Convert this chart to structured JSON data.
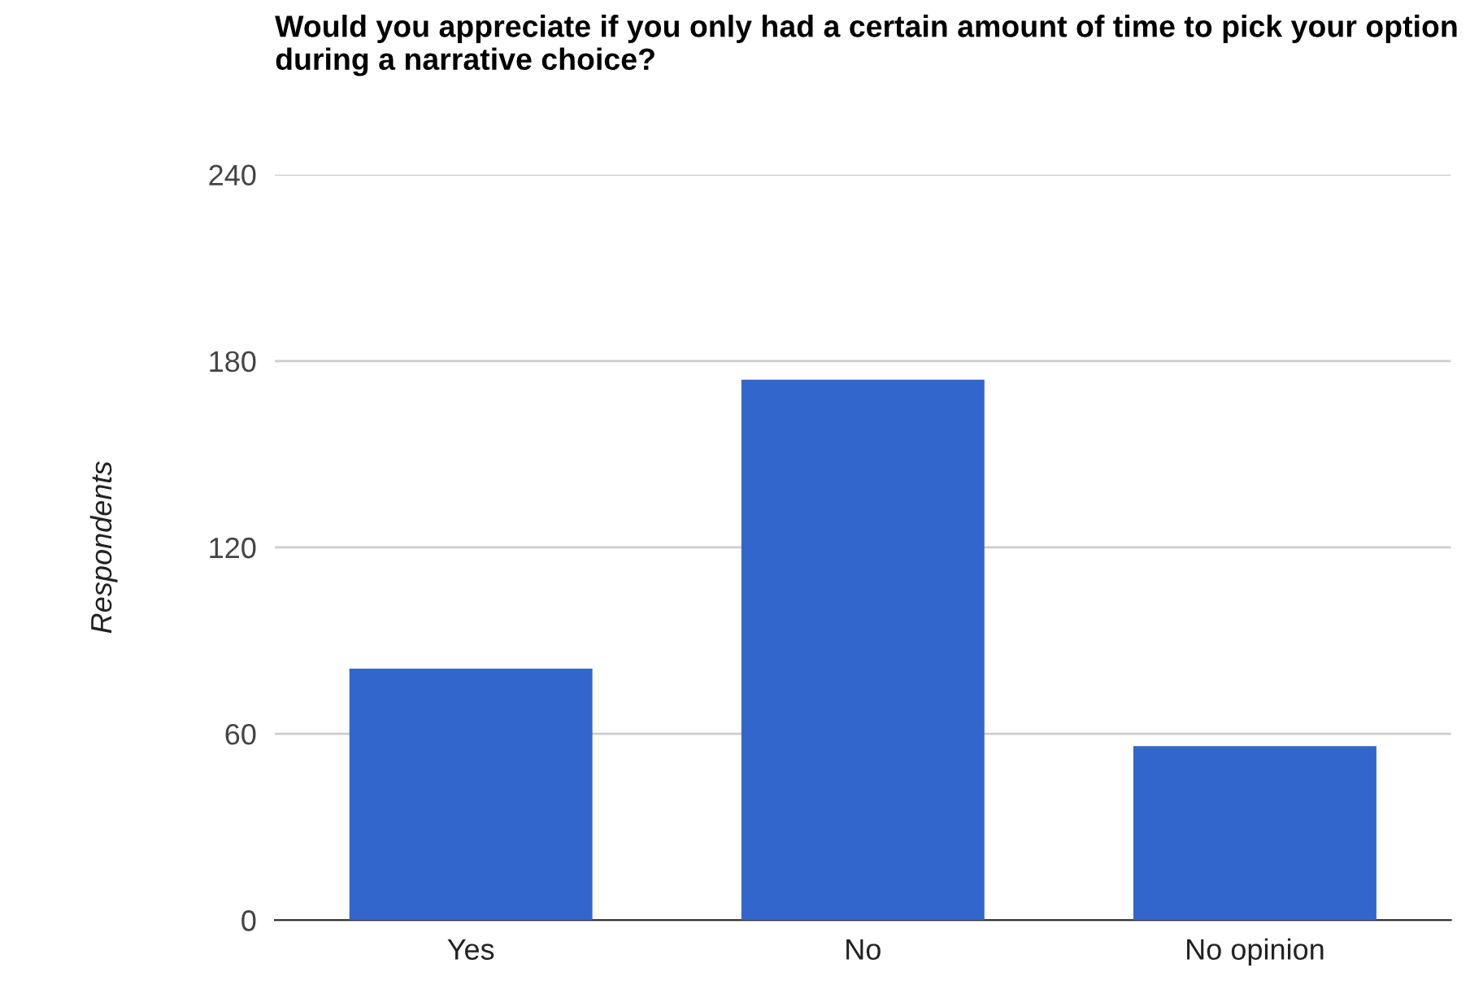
{
  "chart_data": {
    "type": "bar",
    "title": "Would you appreciate if you only had a certain amount of time to pick your option during a narrative choice?",
    "ylabel": "Respondents",
    "categories": [
      "Yes",
      "No",
      "No opinion"
    ],
    "values": [
      81,
      174,
      56
    ],
    "color": "#3366cc",
    "ylim": [
      0,
      240
    ],
    "yticks": [
      0,
      60,
      120,
      180,
      240
    ],
    "grid": "y",
    "legend": false
  }
}
